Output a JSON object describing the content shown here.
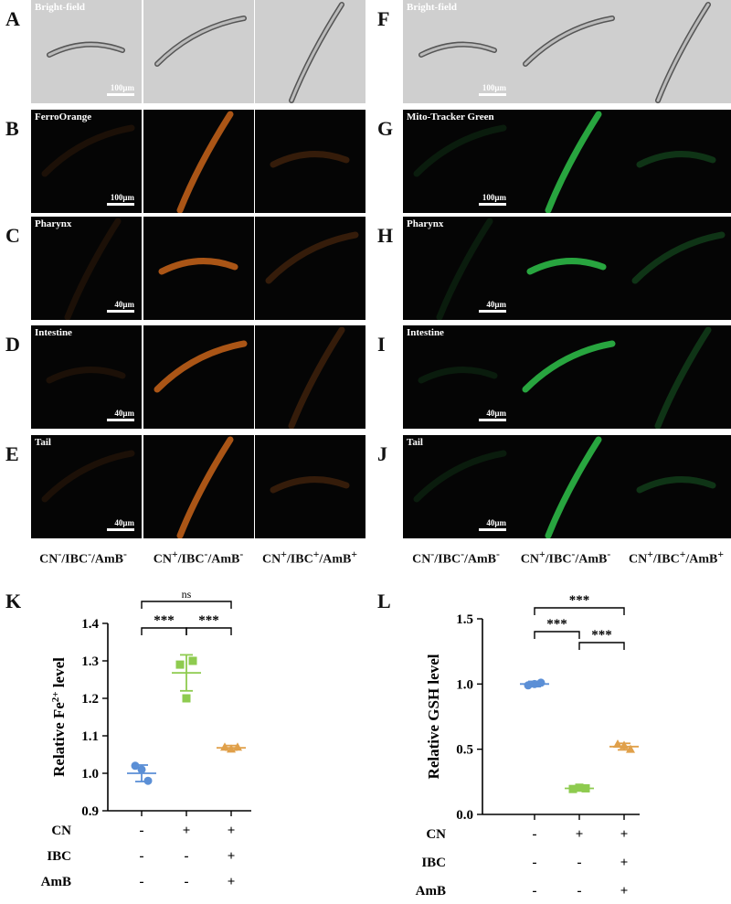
{
  "panel_letters": [
    "A",
    "B",
    "C",
    "D",
    "E",
    "F",
    "G",
    "H",
    "I",
    "J",
    "K",
    "L"
  ],
  "left_rows": [
    {
      "letter": "A",
      "title": "Bright-field",
      "scale": "100μm",
      "kind": "bf"
    },
    {
      "letter": "B",
      "title": "FerroOrange",
      "scale": "100μm",
      "kind": "fl"
    },
    {
      "letter": "C",
      "title": "Pharynx",
      "scale": "40μm",
      "kind": "fl"
    },
    {
      "letter": "D",
      "title": "Intestine",
      "scale": "40μm",
      "kind": "fl"
    },
    {
      "letter": "E",
      "title": "Tail",
      "scale": "40μm",
      "kind": "fl"
    }
  ],
  "right_rows": [
    {
      "letter": "F",
      "title": "Bright-field",
      "scale": "100μm",
      "kind": "bf"
    },
    {
      "letter": "G",
      "title": "Mito-Tracker Green",
      "scale": "100μm",
      "kind": "fl"
    },
    {
      "letter": "H",
      "title": "Pharynx",
      "scale": "40μm",
      "kind": "fl"
    },
    {
      "letter": "I",
      "title": "Intestine",
      "scale": "40μm",
      "kind": "fl"
    },
    {
      "letter": "J",
      "title": "Tail",
      "scale": "40μm",
      "kind": "fl"
    }
  ],
  "conditions": [
    {
      "base": "CN",
      "s1": "-",
      "mid1": "/IBC",
      "s2": "-",
      "mid2": "/AmB",
      "s3": "-"
    },
    {
      "base": "CN",
      "s1": "+",
      "mid1": "/IBC",
      "s2": "-",
      "mid2": "/AmB",
      "s3": "-"
    },
    {
      "base": "CN",
      "s1": "+",
      "mid1": "/IBC",
      "s2": "+",
      "mid2": "/AmB",
      "s3": "+"
    }
  ],
  "colors": {
    "ferro": "#c8641a",
    "mito": "#2fc24a",
    "group1": "#5b8fd6",
    "group2": "#8ecb4f",
    "group3": "#e0a04a"
  },
  "chart_data": [
    {
      "panel": "K",
      "type": "scatter",
      "ylabel": "Relative Fe",
      "ylabel_sup": "2+",
      "ylabel_suffix": " level",
      "ylim": [
        0.9,
        1.4
      ],
      "yticks": [
        "0.9",
        "1.0",
        "1.1",
        "1.2",
        "1.3",
        "1.4"
      ],
      "row_labels": [
        "CN",
        "IBC",
        "AmB"
      ],
      "row_values": [
        [
          "-",
          "+",
          "+"
        ],
        [
          "-",
          "-",
          "+"
        ],
        [
          "-",
          "-",
          "+"
        ]
      ],
      "series": [
        {
          "points": [
            1.02,
            0.98,
            1.01
          ],
          "mean": 1.0,
          "sd": 0.022
        },
        {
          "points": [
            1.29,
            1.3,
            1.2
          ],
          "mean": 1.268,
          "sd": 0.048
        },
        {
          "points": [
            1.07,
            1.07,
            1.065
          ],
          "mean": 1.068,
          "sd": 0.006
        }
      ],
      "significance": [
        {
          "from": 0,
          "to": 1,
          "label": "***"
        },
        {
          "from": 1,
          "to": 2,
          "label": "***"
        },
        {
          "from": 0,
          "to": 2,
          "label": "ns"
        }
      ]
    },
    {
      "panel": "L",
      "type": "scatter",
      "ylabel": "Relative GSH level",
      "ylim": [
        0.0,
        1.5
      ],
      "yticks": [
        "0.0",
        "0.5",
        "1.0",
        "1.5"
      ],
      "row_labels": [
        "CN",
        "IBC",
        "AmB"
      ],
      "row_values": [
        [
          "-",
          "+",
          "+"
        ],
        [
          "-",
          "-",
          "+"
        ],
        [
          "-",
          "-",
          "+"
        ]
      ],
      "series": [
        {
          "points": [
            0.99,
            1.01,
            1.0
          ],
          "mean": 1.0,
          "sd": 0.02
        },
        {
          "points": [
            0.195,
            0.2,
            0.205
          ],
          "mean": 0.2,
          "sd": 0.006
        },
        {
          "points": [
            0.54,
            0.5,
            0.53
          ],
          "mean": 0.52,
          "sd": 0.025
        }
      ],
      "significance": [
        {
          "from": 0,
          "to": 1,
          "label": "***"
        },
        {
          "from": 1,
          "to": 2,
          "label": "***"
        },
        {
          "from": 0,
          "to": 2,
          "label": "***"
        }
      ]
    }
  ]
}
